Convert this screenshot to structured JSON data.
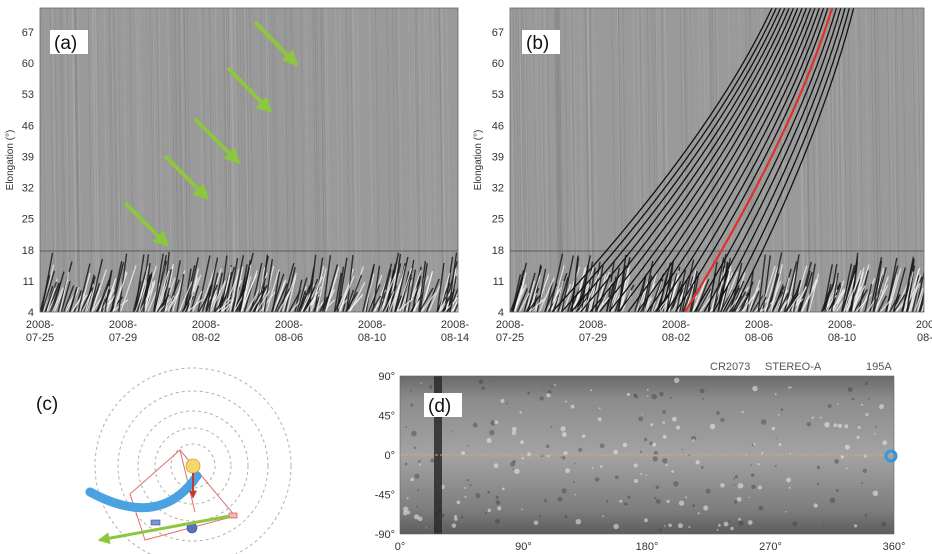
{
  "panels": {
    "a": {
      "label": "(a)",
      "ylabel": "Elongation (°)",
      "yticks": [
        "67",
        "60",
        "53",
        "46",
        "39",
        "32",
        "25",
        "18",
        "11",
        "4"
      ],
      "xticks": [
        [
          "2008-",
          "07-25"
        ],
        [
          "2008-",
          "07-29"
        ],
        [
          "2008-",
          "08-02"
        ],
        [
          "2008-",
          "08-06"
        ],
        [
          "2008-",
          "08-10"
        ],
        [
          "2008-",
          "08-14"
        ]
      ]
    },
    "b": {
      "label": "(b)",
      "ylabel": "Elongation (°)",
      "yticks": [
        "67",
        "60",
        "53",
        "46",
        "39",
        "32",
        "25",
        "18",
        "11",
        "4"
      ],
      "xticks": [
        [
          "2008-",
          "07-25"
        ],
        [
          "2008-",
          "07-29"
        ],
        [
          "2008-",
          "08-02"
        ],
        [
          "2008-",
          "08-06"
        ],
        [
          "2008-",
          "08-10"
        ],
        [
          "200",
          "08-"
        ]
      ]
    },
    "c": {
      "label": "(c)"
    },
    "d": {
      "label": "(d)",
      "header": {
        "rotation": "CR2073",
        "spacecraft": "STEREO-A",
        "wavelength": "195A"
      },
      "yticks": [
        "90°",
        "45°",
        "0°",
        "-45°",
        "-90°"
      ],
      "xticks": [
        "0°",
        "90°",
        "180°",
        "270°",
        "360°"
      ]
    }
  },
  "colors": {
    "arrow": "#8dc63f",
    "track": "#111111",
    "highlight_track": "#e0302a",
    "orbit": "#b0b0b0",
    "sun": "#f3d96b",
    "stream": "#4aa3e0"
  }
}
